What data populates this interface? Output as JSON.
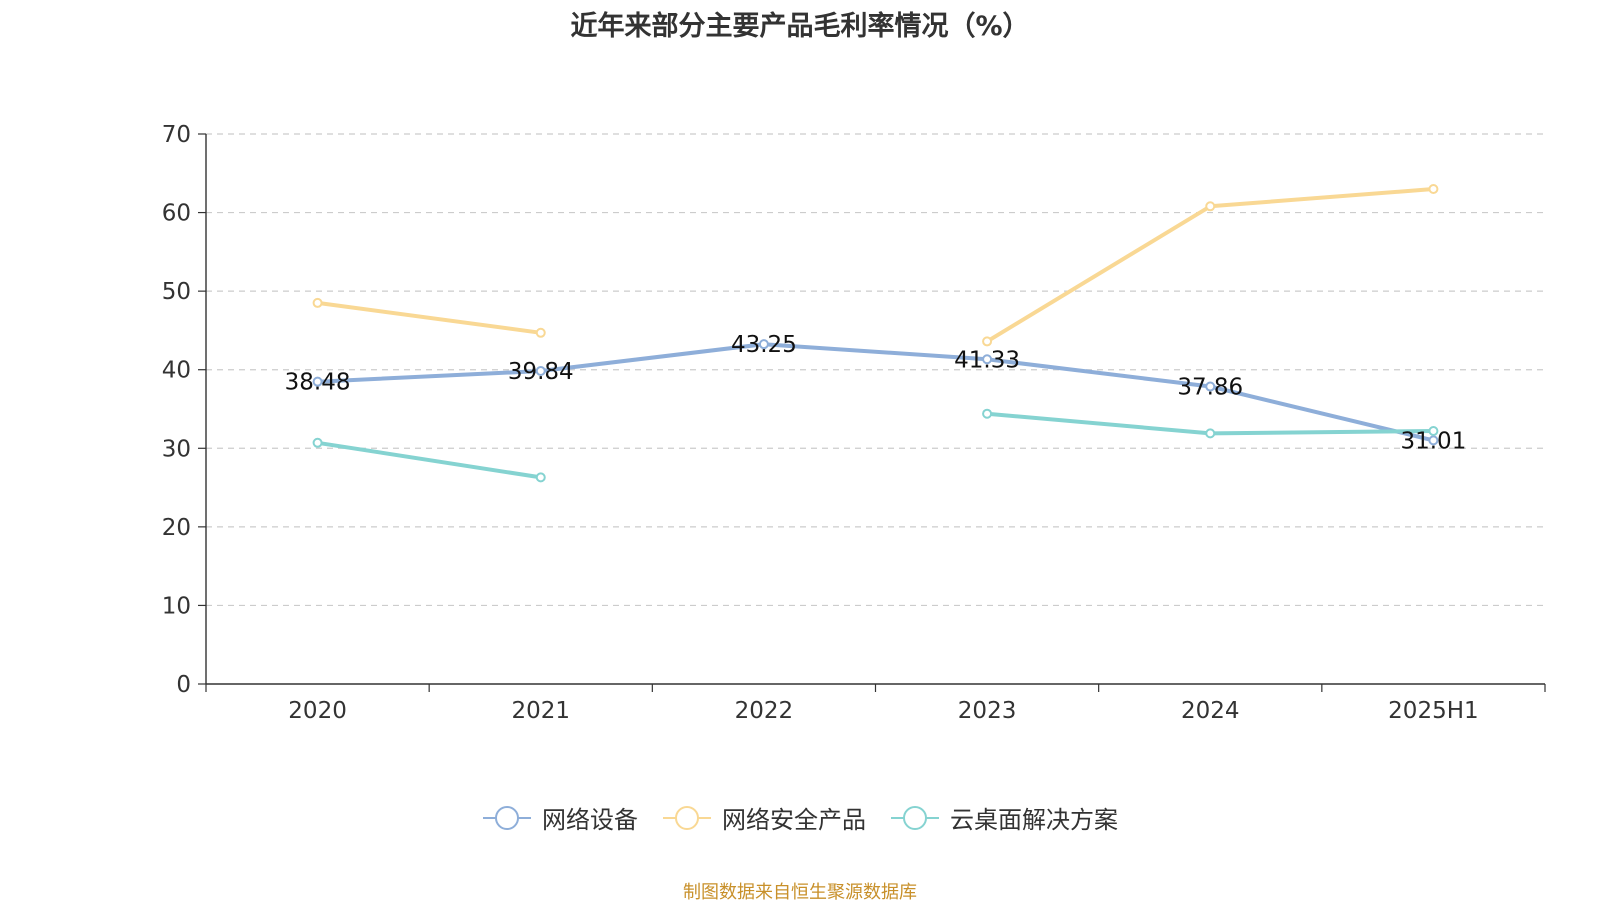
{
  "chart_data": {
    "type": "line",
    "title": "近年来部分主要产品毛利率情况（%）",
    "categories": [
      "2020",
      "2021",
      "2022",
      "2023",
      "2024",
      "2025H1"
    ],
    "ylim": [
      0,
      70
    ],
    "yticks": [
      0,
      10,
      20,
      30,
      40,
      50,
      60,
      70
    ],
    "grid": true,
    "legend_position": "bottom",
    "series": [
      {
        "name": "网络设备",
        "color": "#8eaed9",
        "values": [
          38.48,
          39.84,
          43.25,
          41.33,
          37.86,
          31.01
        ],
        "show_labels": true
      },
      {
        "name": "网络安全产品",
        "color": "#f9d894",
        "values": [
          48.5,
          44.7,
          null,
          43.6,
          60.8,
          63.0
        ],
        "show_labels": false
      },
      {
        "name": "云桌面解决方案",
        "color": "#85d3d1",
        "values": [
          30.7,
          26.3,
          null,
          34.4,
          31.9,
          32.2
        ],
        "show_labels": false
      }
    ]
  },
  "footer": {
    "source": "制图数据来自恒生聚源数据库"
  }
}
